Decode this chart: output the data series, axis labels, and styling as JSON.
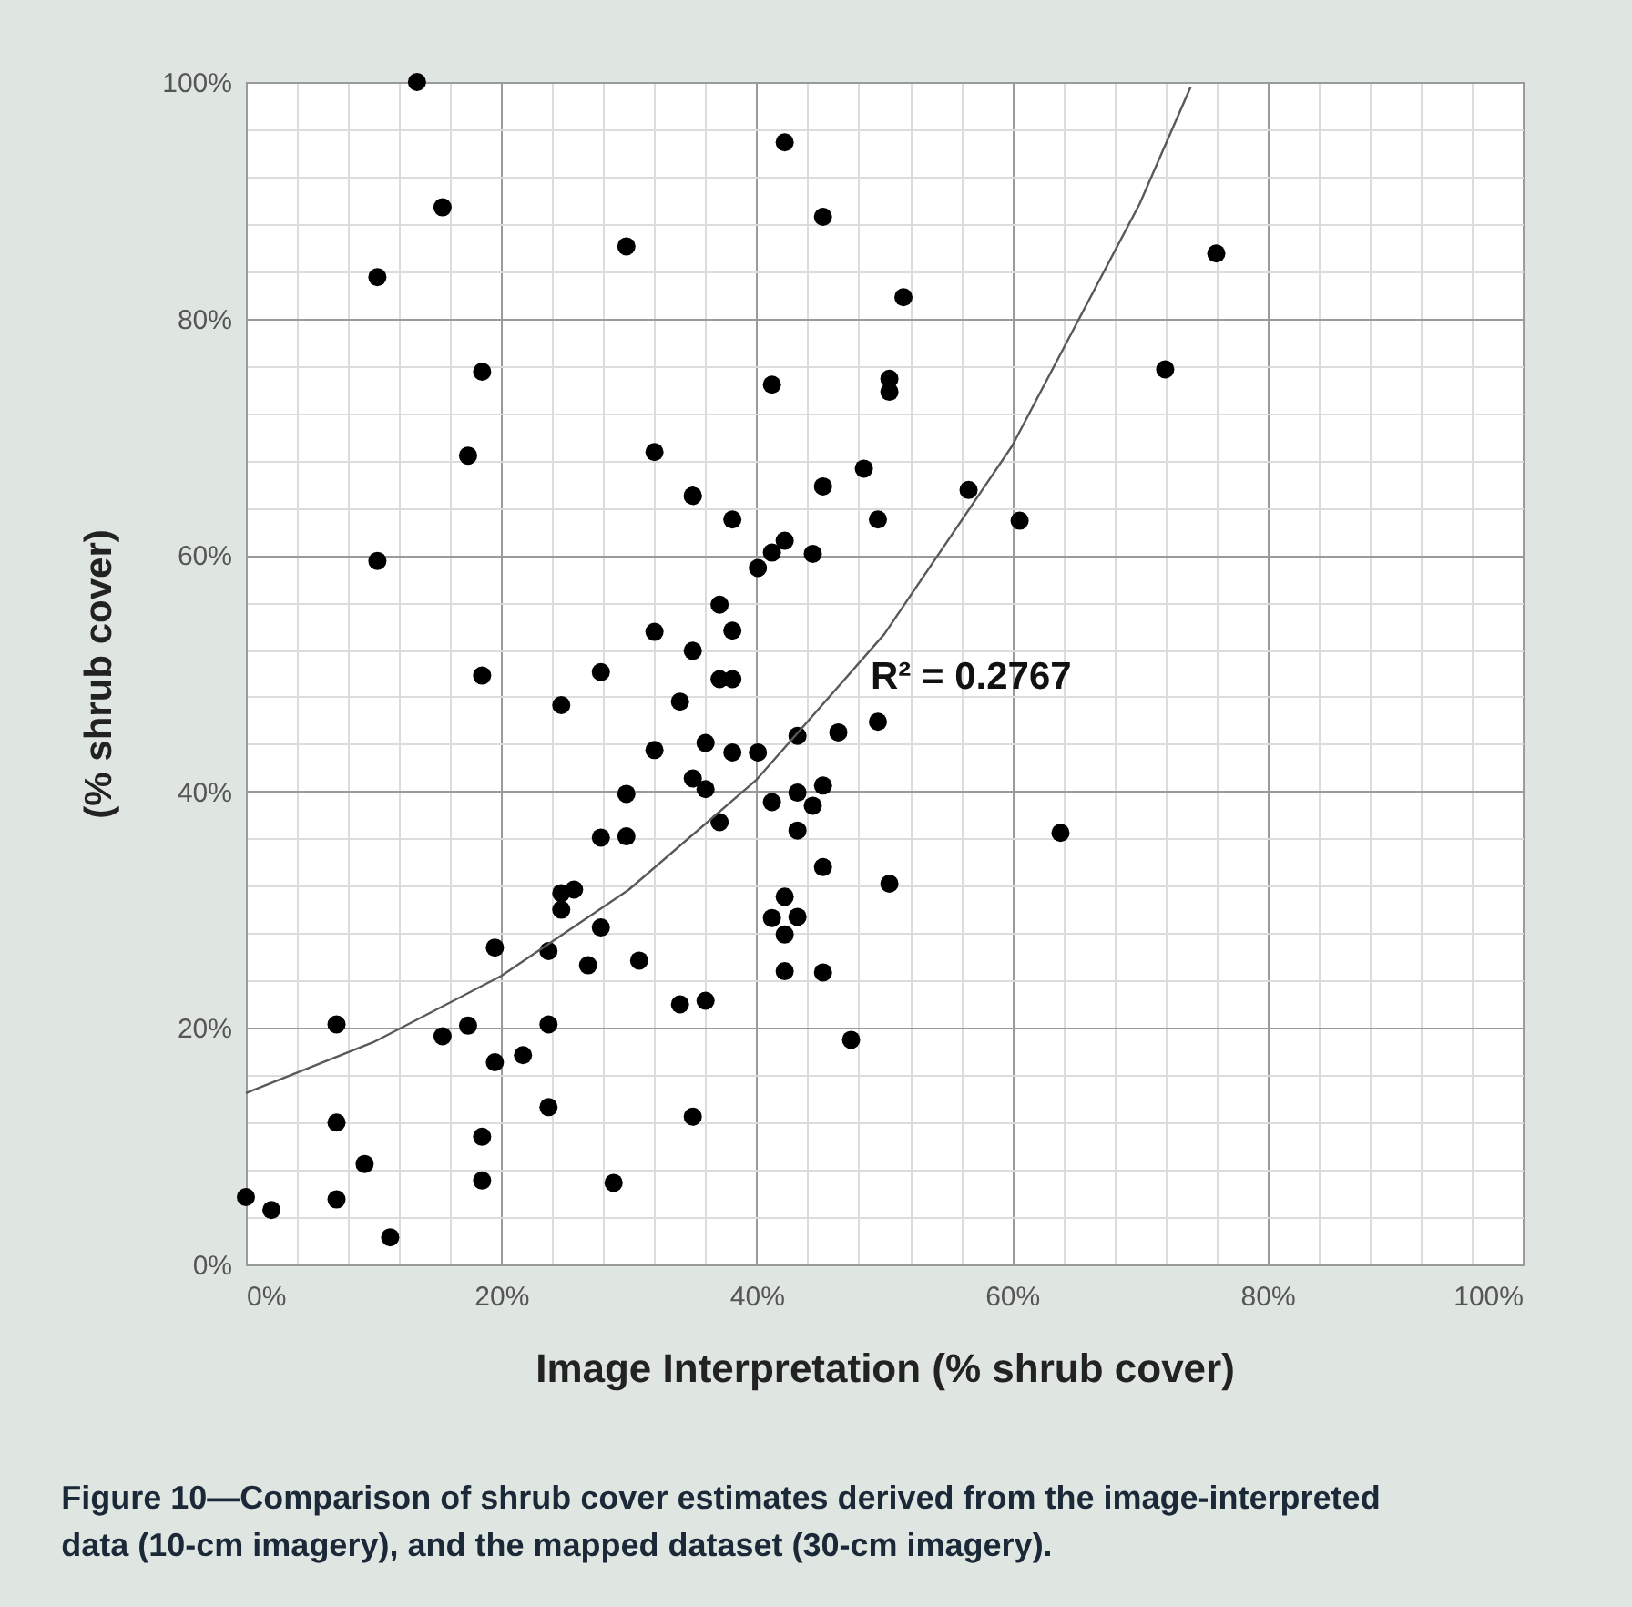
{
  "chart_data": {
    "type": "scatter",
    "title": "Figure 10—Comparison of shrub cover estimates derived from the image-interpreted\ndata (10-cm imagery), and the mapped dataset (30-cm imagery).",
    "xlabel": "Image Interpretation (% shrub cover)",
    "ylabel": "(% shrub cover)",
    "annotations": [
      "R² = 0.2767"
    ],
    "xlim": [
      0,
      100
    ],
    "ylim": [
      0,
      100
    ],
    "xticks": [
      {
        "value": 0,
        "label": "0%"
      },
      {
        "value": 4,
        "label": null
      },
      {
        "value": 8,
        "label": null
      },
      {
        "value": 12,
        "label": null
      },
      {
        "value": 16,
        "label": null
      },
      {
        "value": 20,
        "label": "20%"
      },
      {
        "value": 24,
        "label": null
      },
      {
        "value": 28,
        "label": null
      },
      {
        "value": 32,
        "label": null
      },
      {
        "value": 36,
        "label": null
      },
      {
        "value": 40,
        "label": "40%"
      },
      {
        "value": 44,
        "label": null
      },
      {
        "value": 48,
        "label": null
      },
      {
        "value": 52,
        "label": null
      },
      {
        "value": 56,
        "label": null
      },
      {
        "value": 60,
        "label": "60%"
      },
      {
        "value": 64,
        "label": null
      },
      {
        "value": 68,
        "label": null
      },
      {
        "value": 72,
        "label": null
      },
      {
        "value": 76,
        "label": null
      },
      {
        "value": 80,
        "label": "80%"
      },
      {
        "value": 84,
        "label": null
      },
      {
        "value": 88,
        "label": null
      },
      {
        "value": 92,
        "label": null
      },
      {
        "value": 96,
        "label": null
      },
      {
        "value": 100,
        "label": "100%"
      }
    ],
    "yticks": [
      {
        "value": 0,
        "label": "0%"
      },
      {
        "value": 4,
        "label": null
      },
      {
        "value": 8,
        "label": null
      },
      {
        "value": 12,
        "label": null
      },
      {
        "value": 16,
        "label": null
      },
      {
        "value": 20,
        "label": "20%"
      },
      {
        "value": 24,
        "label": null
      },
      {
        "value": 28,
        "label": null
      },
      {
        "value": 32,
        "label": null
      },
      {
        "value": 36,
        "label": null
      },
      {
        "value": 40,
        "label": "40%"
      },
      {
        "value": 44,
        "label": null
      },
      {
        "value": 48,
        "label": null
      },
      {
        "value": 52,
        "label": null
      },
      {
        "value": 56,
        "label": null
      },
      {
        "value": 60,
        "label": "60%"
      },
      {
        "value": 64,
        "label": null
      },
      {
        "value": 68,
        "label": null
      },
      {
        "value": 72,
        "label": null
      },
      {
        "value": 76,
        "label": null
      },
      {
        "value": 80,
        "label": "80%"
      },
      {
        "value": 84,
        "label": null
      },
      {
        "value": 88,
        "label": null
      },
      {
        "value": 92,
        "label": null
      },
      {
        "value": 96,
        "label": null
      },
      {
        "value": 100,
        "label": "100%"
      }
    ],
    "grid": true,
    "series": [
      {
        "marker": "circle",
        "color": "#000000",
        "x": [
          0,
          2.0,
          7.1,
          7.1,
          7.1,
          9.3,
          11.3,
          13.4,
          10.3,
          10.3,
          15.4,
          18.5,
          17.4,
          18.5,
          15.4,
          17.4,
          18.5,
          18.5,
          19.5,
          21.7,
          23.7,
          23.7,
          23.7,
          24.7,
          24.7,
          25.7,
          26.8,
          27.8,
          27.8,
          28.8,
          29.8,
          29.8,
          29.8,
          30.8,
          32.0,
          32.0,
          32.0,
          34.0,
          34.0,
          35.0,
          35.0,
          35.0,
          35.0,
          36.0,
          36.0,
          36.0,
          37.1,
          37.1,
          37.1,
          38.1,
          38.1,
          38.1,
          38.1,
          40.1,
          40.1,
          41.2,
          41.2,
          41.2,
          41.2,
          42.2,
          42.2,
          42.2,
          42.2,
          42.2,
          43.2,
          43.2,
          43.2,
          43.2,
          44.4,
          44.4,
          45.2,
          45.2,
          45.2,
          45.2,
          45.2,
          46.4,
          47.4,
          48.4,
          49.5,
          49.5,
          50.4,
          50.4,
          50.4,
          51.5,
          56.6,
          60.6,
          63.8,
          72.0,
          76.0,
          27.8,
          24.7,
          35.0,
          19.5
        ],
        "values": [
          5.7,
          4.6,
          20.3,
          12.0,
          5.5,
          8.5,
          2.3,
          100,
          83.5,
          59.5,
          89.4,
          75.5,
          68.4,
          49.8,
          19.3,
          20.2,
          10.8,
          7.1,
          17.1,
          17.7,
          20.3,
          13.3,
          26.5,
          47.3,
          31.4,
          31.7,
          25.3,
          36.1,
          50.1,
          6.9,
          86.1,
          39.8,
          36.2,
          25.7,
          68.7,
          53.5,
          43.5,
          47.6,
          22.0,
          65.0,
          51.9,
          41.1,
          12.5,
          44.1,
          40.2,
          22.3,
          55.8,
          49.5,
          37.4,
          63.0,
          53.6,
          49.5,
          43.3,
          58.9,
          43.3,
          74.4,
          60.2,
          39.1,
          29.3,
          94.9,
          61.2,
          31.1,
          27.9,
          24.8,
          44.7,
          39.9,
          36.7,
          29.4,
          60.1,
          38.8,
          88.6,
          65.8,
          40.5,
          33.6,
          24.7,
          45.0,
          19.0,
          67.3,
          63.0,
          45.9,
          74.9,
          73.8,
          32.2,
          81.8,
          65.5,
          62.9,
          36.5,
          75.7,
          85.5,
          28.5,
          30.0,
          65.0,
          26.8
        ]
      },
      {
        "type": "line",
        "marker": "none",
        "color": "#595959",
        "x": [
          0,
          10,
          20,
          30,
          40,
          50,
          60,
          70,
          74
        ],
        "values": [
          14.5,
          18.8,
          24.4,
          31.7,
          41.0,
          53.3,
          69.2,
          89.7,
          99.6
        ]
      }
    ]
  }
}
